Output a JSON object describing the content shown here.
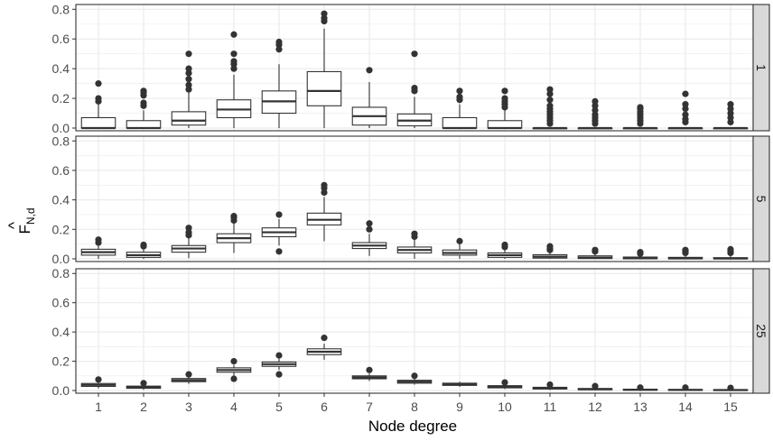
{
  "chart_data": {
    "type": "boxplot",
    "layout": "faceted-rows",
    "xlabel": "Node degree",
    "ylabel": "F",
    "ylabel_sub": "N,d",
    "ylabel_accent": "^",
    "categories": [
      "1",
      "2",
      "3",
      "4",
      "5",
      "6",
      "7",
      "8",
      "9",
      "10",
      "11",
      "12",
      "13",
      "14",
      "15"
    ],
    "ylim": [
      0,
      0.82
    ],
    "yticks": [
      0.0,
      0.2,
      0.4,
      0.6,
      0.8
    ],
    "ytick_labels": [
      "0.0",
      "0.2",
      "0.4",
      "0.6",
      "0.8"
    ],
    "grid": true,
    "colors": {
      "panel_border": "#333333",
      "grid_major": "#ebebeb",
      "strip_fill": "#d9d9d9",
      "box_line": "#333333",
      "outlier": "#333333"
    },
    "facets": [
      {
        "label": "1",
        "boxes": [
          {
            "q1": 0.0,
            "median": 0.0,
            "q3": 0.07,
            "lower": 0.0,
            "upper": 0.165,
            "outliers": [
              0.18,
              0.2,
              0.3
            ]
          },
          {
            "q1": 0.0,
            "median": 0.0,
            "q3": 0.05,
            "lower": 0.0,
            "upper": 0.12,
            "outliers": [
              0.15,
              0.17,
              0.22,
              0.24,
              0.25
            ]
          },
          {
            "q1": 0.02,
            "median": 0.05,
            "q3": 0.11,
            "lower": 0.0,
            "upper": 0.24,
            "outliers": [
              0.26,
              0.29,
              0.33,
              0.37,
              0.4,
              0.5
            ]
          },
          {
            "q1": 0.07,
            "median": 0.125,
            "q3": 0.19,
            "lower": 0.0,
            "upper": 0.36,
            "outliers": [
              0.4,
              0.43,
              0.45,
              0.5,
              0.63
            ]
          },
          {
            "q1": 0.1,
            "median": 0.18,
            "q3": 0.25,
            "lower": 0.0,
            "upper": 0.43,
            "outliers": [
              0.53,
              0.56,
              0.58
            ]
          },
          {
            "q1": 0.15,
            "median": 0.25,
            "q3": 0.38,
            "lower": 0.0,
            "upper": 0.67,
            "outliers": [
              0.72,
              0.74,
              0.77
            ]
          },
          {
            "q1": 0.02,
            "median": 0.08,
            "q3": 0.14,
            "lower": 0.0,
            "upper": 0.31,
            "outliers": [
              0.39
            ]
          },
          {
            "q1": 0.015,
            "median": 0.05,
            "q3": 0.095,
            "lower": 0.0,
            "upper": 0.21,
            "outliers": [
              0.25,
              0.27,
              0.5
            ]
          },
          {
            "q1": 0.0,
            "median": 0.0,
            "q3": 0.07,
            "lower": 0.0,
            "upper": 0.16,
            "outliers": [
              0.19,
              0.21,
              0.25
            ]
          },
          {
            "q1": 0.0,
            "median": 0.0,
            "q3": 0.05,
            "lower": 0.0,
            "upper": 0.12,
            "outliers": [
              0.14,
              0.16,
              0.18,
              0.2,
              0.25
            ]
          },
          {
            "q1": 0.0,
            "median": 0.0,
            "q3": 0.0,
            "lower": 0.0,
            "upper": 0.0,
            "outliers": [
              0.03,
              0.05,
              0.07,
              0.09,
              0.11,
              0.13,
              0.15,
              0.19,
              0.23,
              0.26
            ]
          },
          {
            "q1": 0.0,
            "median": 0.0,
            "q3": 0.0,
            "lower": 0.0,
            "upper": 0.0,
            "outliers": [
              0.03,
              0.05,
              0.07,
              0.09,
              0.12,
              0.15,
              0.18
            ]
          },
          {
            "q1": 0.0,
            "median": 0.0,
            "q3": 0.0,
            "lower": 0.0,
            "upper": 0.0,
            "outliers": [
              0.03,
              0.05,
              0.07,
              0.09,
              0.11,
              0.13,
              0.14
            ]
          },
          {
            "q1": 0.0,
            "median": 0.0,
            "q3": 0.0,
            "lower": 0.0,
            "upper": 0.0,
            "outliers": [
              0.04,
              0.06,
              0.09,
              0.13,
              0.16,
              0.23
            ]
          },
          {
            "q1": 0.0,
            "median": 0.0,
            "q3": 0.0,
            "lower": 0.0,
            "upper": 0.0,
            "outliers": [
              0.04,
              0.07,
              0.1,
              0.13,
              0.16
            ]
          }
        ]
      },
      {
        "label": "5",
        "boxes": [
          {
            "q1": 0.025,
            "median": 0.045,
            "q3": 0.065,
            "lower": 0.0,
            "upper": 0.1,
            "outliers": [
              0.11,
              0.13
            ]
          },
          {
            "q1": 0.01,
            "median": 0.025,
            "q3": 0.045,
            "lower": 0.0,
            "upper": 0.075,
            "outliers": [
              0.085,
              0.095
            ]
          },
          {
            "q1": 0.045,
            "median": 0.07,
            "q3": 0.09,
            "lower": 0.005,
            "upper": 0.15,
            "outliers": [
              0.16,
              0.18,
              0.21
            ]
          },
          {
            "q1": 0.11,
            "median": 0.14,
            "q3": 0.17,
            "lower": 0.04,
            "upper": 0.24,
            "outliers": [
              0.26,
              0.28,
              0.29
            ]
          },
          {
            "q1": 0.15,
            "median": 0.18,
            "q3": 0.21,
            "lower": 0.09,
            "upper": 0.27,
            "outliers": [
              0.05,
              0.3
            ]
          },
          {
            "q1": 0.23,
            "median": 0.265,
            "q3": 0.31,
            "lower": 0.12,
            "upper": 0.42,
            "outliers": [
              0.45,
              0.48,
              0.5
            ]
          },
          {
            "q1": 0.07,
            "median": 0.09,
            "q3": 0.11,
            "lower": 0.02,
            "upper": 0.17,
            "outliers": [
              0.2,
              0.24
            ]
          },
          {
            "q1": 0.04,
            "median": 0.06,
            "q3": 0.08,
            "lower": 0.0,
            "upper": 0.13,
            "outliers": [
              0.15,
              0.17
            ]
          },
          {
            "q1": 0.025,
            "median": 0.04,
            "q3": 0.06,
            "lower": 0.0,
            "upper": 0.1,
            "outliers": [
              0.12
            ]
          },
          {
            "q1": 0.01,
            "median": 0.025,
            "q3": 0.04,
            "lower": 0.0,
            "upper": 0.07,
            "outliers": [
              0.08,
              0.095
            ]
          },
          {
            "q1": 0.005,
            "median": 0.015,
            "q3": 0.028,
            "lower": 0.0,
            "upper": 0.05,
            "outliers": [
              0.06,
              0.07,
              0.085
            ]
          },
          {
            "q1": 0.002,
            "median": 0.008,
            "q3": 0.02,
            "lower": 0.0,
            "upper": 0.037,
            "outliers": [
              0.05,
              0.06
            ]
          },
          {
            "q1": 0.0,
            "median": 0.004,
            "q3": 0.012,
            "lower": 0.0,
            "upper": 0.028,
            "outliers": [
              0.035,
              0.045
            ]
          },
          {
            "q1": 0.0,
            "median": 0.003,
            "q3": 0.01,
            "lower": 0.0,
            "upper": 0.025,
            "outliers": [
              0.04,
              0.05,
              0.06
            ]
          },
          {
            "q1": 0.0,
            "median": 0.002,
            "q3": 0.008,
            "lower": 0.0,
            "upper": 0.02,
            "outliers": [
              0.04,
              0.05,
              0.065
            ]
          }
        ]
      },
      {
        "label": "25",
        "boxes": [
          {
            "q1": 0.028,
            "median": 0.038,
            "q3": 0.048,
            "lower": 0.015,
            "upper": 0.06,
            "outliers": [
              0.075
            ]
          },
          {
            "q1": 0.015,
            "median": 0.022,
            "q3": 0.03,
            "lower": 0.005,
            "upper": 0.04,
            "outliers": [
              0.05
            ]
          },
          {
            "q1": 0.06,
            "median": 0.07,
            "q3": 0.082,
            "lower": 0.045,
            "upper": 0.1,
            "outliers": [
              0.11
            ]
          },
          {
            "q1": 0.125,
            "median": 0.14,
            "q3": 0.155,
            "lower": 0.1,
            "upper": 0.175,
            "outliers": [
              0.08,
              0.2
            ]
          },
          {
            "q1": 0.165,
            "median": 0.18,
            "q3": 0.195,
            "lower": 0.14,
            "upper": 0.22,
            "outliers": [
              0.11,
              0.24
            ]
          },
          {
            "q1": 0.245,
            "median": 0.265,
            "q3": 0.285,
            "lower": 0.21,
            "upper": 0.32,
            "outliers": [
              0.36
            ]
          },
          {
            "q1": 0.08,
            "median": 0.09,
            "q3": 0.1,
            "lower": 0.065,
            "upper": 0.115,
            "outliers": [
              0.14
            ]
          },
          {
            "q1": 0.05,
            "median": 0.06,
            "q3": 0.07,
            "lower": 0.04,
            "upper": 0.085,
            "outliers": [
              0.1
            ]
          },
          {
            "q1": 0.035,
            "median": 0.042,
            "q3": 0.05,
            "lower": 0.025,
            "upper": 0.06,
            "outliers": []
          },
          {
            "q1": 0.018,
            "median": 0.025,
            "q3": 0.033,
            "lower": 0.01,
            "upper": 0.045,
            "outliers": [
              0.055
            ]
          },
          {
            "q1": 0.01,
            "median": 0.015,
            "q3": 0.022,
            "lower": 0.003,
            "upper": 0.03,
            "outliers": [
              0.04
            ]
          },
          {
            "q1": 0.005,
            "median": 0.009,
            "q3": 0.014,
            "lower": 0.0,
            "upper": 0.02,
            "outliers": [
              0.03
            ]
          },
          {
            "q1": 0.002,
            "median": 0.005,
            "q3": 0.009,
            "lower": 0.0,
            "upper": 0.014,
            "outliers": [
              0.02
            ]
          },
          {
            "q1": 0.001,
            "median": 0.004,
            "q3": 0.007,
            "lower": 0.0,
            "upper": 0.012,
            "outliers": [
              0.02
            ]
          },
          {
            "q1": 0.0,
            "median": 0.003,
            "q3": 0.006,
            "lower": 0.0,
            "upper": 0.01,
            "outliers": [
              0.018
            ]
          }
        ]
      }
    ]
  }
}
